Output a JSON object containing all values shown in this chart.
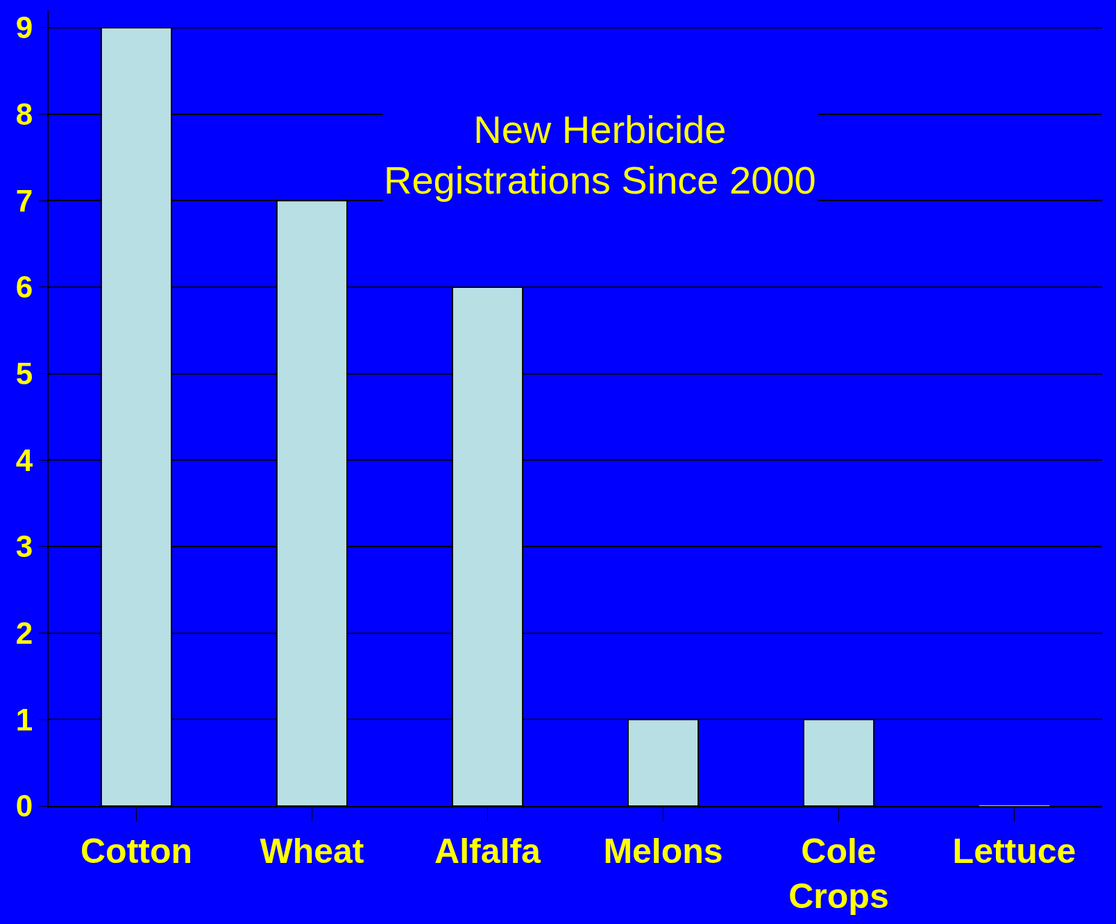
{
  "chart_data": {
    "type": "bar",
    "title": "New Herbicide Registrations Since 2000",
    "categories": [
      "Cotton",
      "Wheat",
      "Alfalfa",
      "Melons",
      "Cole Crops",
      "Lettuce"
    ],
    "values": [
      9,
      7,
      6,
      1,
      1,
      0
    ],
    "color": "#b8dfe3",
    "ylim": [
      0,
      9.2
    ],
    "yticks": [
      0,
      1,
      2,
      3,
      4,
      5,
      6,
      7,
      8,
      9
    ],
    "grid": true
  }
}
